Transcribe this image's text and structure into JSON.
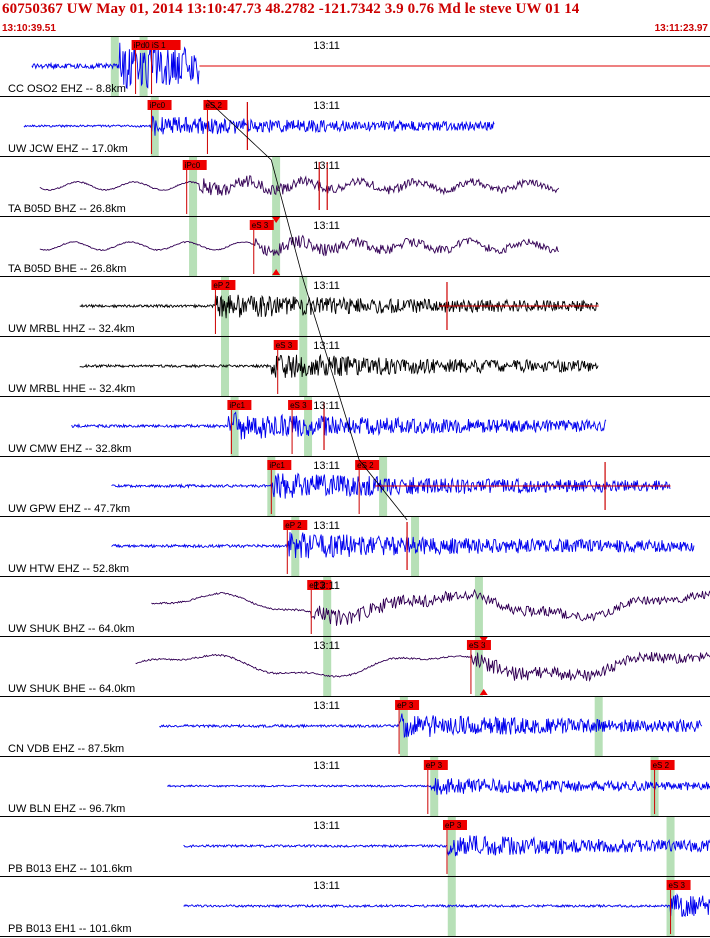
{
  "header": {
    "title": "60750367 UW May 01, 2014 13:10:47.73   48.2782 -121.7342  3.9 0.76 Md le steve UW 01  14",
    "start_time": "13:10:39.51",
    "end_time": "13:11:23.97"
  },
  "colors": {
    "title": "#cc0000",
    "pick_box": "#ee0000",
    "pick_line": "#cc0000",
    "predicted_window": "#b7e0b7",
    "separator": "#000000",
    "traveltime_curve": "#000000"
  },
  "chart_data": {
    "type": "line",
    "title": "60750367 UW May 01, 2014 13:10:47.73   48.2782 -121.7342  3.9 0.76 Md le steve UW 01  14",
    "x_range": [
      "13:10:39.51",
      "13:11:23.97"
    ],
    "x_range_seconds": [
      39.51,
      83.97
    ],
    "time_tick": {
      "label": "13:11",
      "t": 60.0
    },
    "grid": false,
    "traces": [
      {
        "label": "CC OSO2 EHZ -- 8.8km",
        "color": "#0000ee",
        "start": 41.5,
        "end": 52.0,
        "amp": 0.95,
        "char": "hf",
        "burst": 47.0,
        "picks": [
          {
            "label": "iPd0 iS 1",
            "t": 48.0
          },
          {
            "label": "",
            "t": 49.0
          }
        ],
        "windows": [
          46.7,
          48.5
        ],
        "tail": {
          "t": 52.0,
          "color": "#dd0000"
        }
      },
      {
        "label": "UW JCW EHZ -- 17.0km",
        "color": "#0000ee",
        "start": 41.0,
        "end": 70.5,
        "amp": 0.4,
        "char": "hf",
        "burst": 49.0,
        "picks": [
          {
            "label": "iPc0",
            "t": 49.0
          },
          {
            "label": "eS 2",
            "t": 52.5
          }
        ],
        "windows": [
          49.2
        ],
        "spikes": [
          55.0
        ]
      },
      {
        "label": "TA B05D BHZ -- 26.8km",
        "color": "#330055",
        "start": 42.0,
        "end": 74.5,
        "amp": 0.3,
        "char": "lf",
        "burst": 52.0,
        "picks": [
          {
            "label": "iPc0",
            "t": 51.2
          }
        ],
        "windows": [
          51.6,
          56.8
        ],
        "spikes": [
          59.5,
          60.0
        ]
      },
      {
        "label": "TA B05D BHE -- 26.8km",
        "color": "#330055",
        "start": 42.0,
        "end": 74.5,
        "amp": 0.3,
        "char": "lf",
        "burst": 55.5,
        "picks": [
          {
            "label": "eS 3",
            "t": 55.4
          }
        ],
        "windows": [
          51.6,
          56.8
        ],
        "triangle": 56.8
      },
      {
        "label": "UW MRBL HHZ -- 32.4km",
        "color": "#000000",
        "start": 44.5,
        "end": 77.0,
        "amp": 0.5,
        "char": "hf",
        "burst": 53.0,
        "picks": [
          {
            "label": "eP 2",
            "t": 53.0
          }
        ],
        "windows": [
          53.6,
          58.5
        ],
        "tail": {
          "t": 67.0,
          "color": "#dd0000"
        },
        "spikes": [
          67.5
        ]
      },
      {
        "label": "UW MRBL HHE -- 32.4km",
        "color": "#000000",
        "start": 44.5,
        "end": 77.0,
        "amp": 0.5,
        "char": "hf",
        "burst": 56.5,
        "picks": [
          {
            "label": "eS 3",
            "t": 56.9
          }
        ],
        "windows": [
          53.6,
          58.5
        ]
      },
      {
        "label": "UW CMW EHZ -- 32.8km",
        "color": "#0000ee",
        "start": 44.0,
        "end": 77.5,
        "amp": 0.55,
        "char": "hf",
        "burst": 53.8,
        "picks": [
          {
            "label": "iPc1",
            "t": 54.0
          },
          {
            "label": "eS 3",
            "t": 57.8
          }
        ],
        "windows": [
          54.2,
          58.8
        ],
        "spikes": [
          59.8
        ]
      },
      {
        "label": "UW GPW EHZ -- 47.7km",
        "color": "#0000ee",
        "start": 46.5,
        "end": 81.5,
        "amp": 0.55,
        "char": "hf",
        "burst": 56.5,
        "picks": [
          {
            "label": "iPc1",
            "t": 56.5
          },
          {
            "label": "eS 2",
            "t": 62.0
          }
        ],
        "windows": [
          56.5,
          63.5
        ],
        "tail": {
          "t": 63.0,
          "color": "#dd0000"
        },
        "spikes": [
          77.4
        ]
      },
      {
        "label": "UW HTW EHZ -- 52.8km",
        "color": "#0000ee",
        "start": 46.5,
        "end": 83.0,
        "amp": 0.55,
        "char": "hf",
        "burst": 57.5,
        "picks": [
          {
            "label": "eP 2",
            "t": 57.5
          }
        ],
        "windows": [
          58.0,
          65.5
        ],
        "spikes": [
          65.0
        ]
      },
      {
        "label": "UW SHUK BHZ -- 64.0km",
        "color": "#330055",
        "start": 49.0,
        "end": 87.5,
        "amp": 0.55,
        "char": "lf2",
        "burst": 59.0,
        "picks": [
          {
            "label": "eP 2",
            "t": 59.0
          }
        ],
        "windows": [
          60.0,
          69.5
        ]
      },
      {
        "label": "UW SHUK BHE -- 64.0km",
        "color": "#330055",
        "start": 48.0,
        "end": 87.5,
        "amp": 0.55,
        "char": "lf2",
        "burst": 69.0,
        "picks": [
          {
            "label": "eS 3",
            "t": 69.0
          }
        ],
        "windows": [
          60.0,
          69.5
        ],
        "triangle": 69.8
      },
      {
        "label": "CN VDB EHZ -- 87.5km",
        "color": "#0000ee",
        "start": 49.5,
        "end": 83.5,
        "amp": 0.5,
        "char": "hf",
        "burst": 64.5,
        "picks": [
          {
            "label": "eP 3",
            "t": 64.5
          }
        ],
        "windows": [
          64.8,
          77.0
        ]
      },
      {
        "label": "UW BLN EHZ -- 96.7km",
        "color": "#0000ee",
        "start": 50.0,
        "end": 84.0,
        "amp": 0.35,
        "char": "hf",
        "burst": 66.5,
        "picks": [
          {
            "label": "eP 3",
            "t": 66.3
          },
          {
            "label": "eS 2",
            "t": 80.5
          }
        ],
        "windows": [
          66.7,
          80.5
        ]
      },
      {
        "label": "PB B013 EHZ -- 101.6km",
        "color": "#0000ee",
        "start": 51.0,
        "end": 84.0,
        "amp": 0.45,
        "char": "hf",
        "burst": 67.5,
        "picks": [
          {
            "label": "eP 3",
            "t": 67.5
          }
        ],
        "windows": [
          67.8,
          81.5
        ]
      },
      {
        "label": "PB B013 EH1 -- 101.6km",
        "color": "#0000ee",
        "start": 51.0,
        "end": 84.0,
        "amp": 0.45,
        "char": "hf",
        "burst": 81.5,
        "picks": [
          {
            "label": "eS 3",
            "t": 81.5
          }
        ],
        "windows": [
          67.8,
          81.5
        ]
      }
    ]
  }
}
